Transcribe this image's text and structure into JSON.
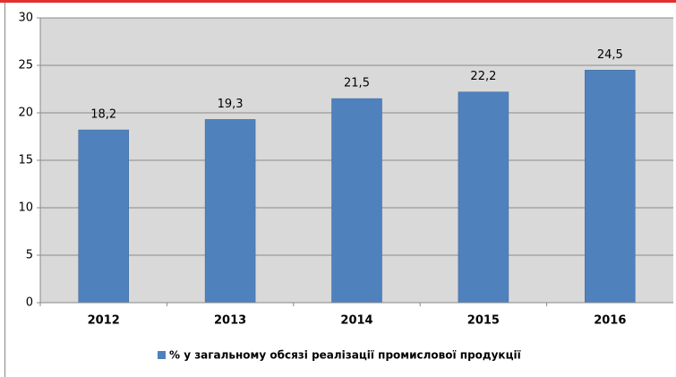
{
  "chart_data": {
    "type": "bar",
    "categories": [
      "2012",
      "2013",
      "2014",
      "2015",
      "2016"
    ],
    "series": [
      {
        "name": "% у загальному  обсязі реалізації промислової продукції",
        "color": "#4f81bd",
        "values": [
          18.2,
          19.3,
          21.5,
          22.2,
          24.5
        ],
        "value_labels": [
          "18,2",
          "19,3",
          "21,5",
          "22,2",
          "24,5"
        ]
      }
    ],
    "ylim": [
      0,
      30
    ],
    "yticks": [
      0,
      5,
      10,
      15,
      20,
      25,
      30
    ],
    "grid": true,
    "legend": "bottom"
  }
}
